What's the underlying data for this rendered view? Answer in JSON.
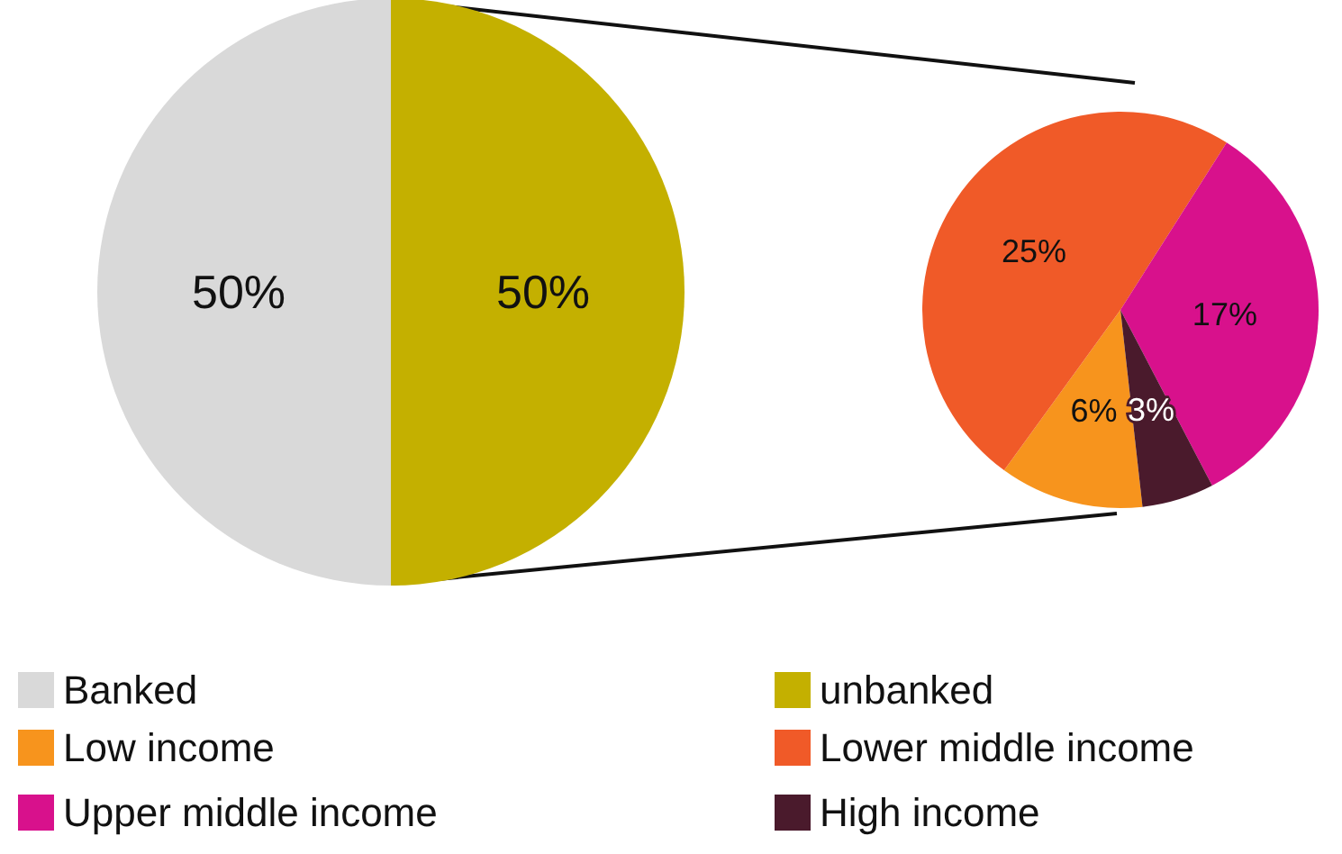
{
  "chart_data": [
    {
      "type": "pie",
      "categories": [
        "Banked",
        "unbanked"
      ],
      "values": [
        50,
        50
      ],
      "colors": [
        "#d9d9d9",
        "#c4b000"
      ],
      "value_labels": [
        "50%",
        "50%"
      ],
      "legend": "bottom"
    },
    {
      "type": "pie",
      "categories": [
        "Low income",
        "Lower middle income",
        "Upper middle income",
        "High income"
      ],
      "values": [
        6,
        25,
        17,
        3
      ],
      "colors": [
        "#f7941d",
        "#f05a28",
        "#d8118c",
        "#4a1a2c"
      ],
      "value_labels": [
        "6%",
        "25%",
        "17%",
        "3%"
      ],
      "legend": "bottom"
    }
  ]
}
